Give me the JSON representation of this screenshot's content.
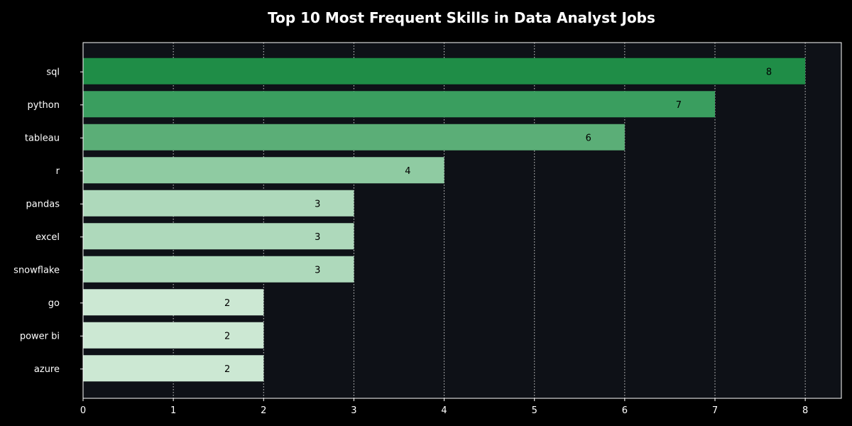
{
  "chart_data": {
    "type": "bar",
    "orientation": "horizontal",
    "title": "Top 10 Most Frequent Skills in Data Analyst Jobs",
    "xlabel": "",
    "ylabel": "",
    "categories": [
      "sql",
      "python",
      "tableau",
      "r",
      "pandas",
      "excel",
      "snowflake",
      "go",
      "power bi",
      "azure"
    ],
    "values": [
      8,
      7,
      6,
      4,
      3,
      3,
      3,
      2,
      2,
      2
    ],
    "xlim": [
      0,
      8.4
    ],
    "xticks": [
      "0",
      "1",
      "2",
      "3",
      "4",
      "5",
      "6",
      "7",
      "8"
    ],
    "grid": "vertical dotted",
    "data_labels": true,
    "bar_colors": [
      "#1f8d47",
      "#3a9e5f",
      "#5bae77",
      "#8fcba2",
      "#aed9bb",
      "#aed9bb",
      "#aed9bb",
      "#cce8d3",
      "#cce8d3",
      "#cce8d3"
    ],
    "background": "#0e1117",
    "figure_background": "#000000"
  }
}
